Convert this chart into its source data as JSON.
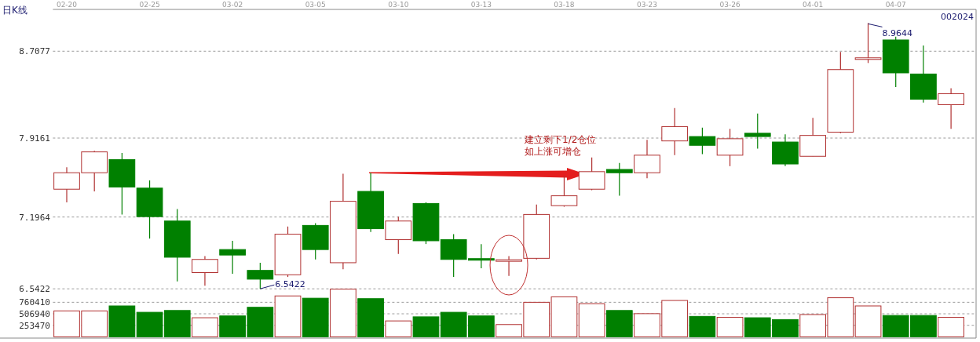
{
  "chart_data": [
    {
      "type": "candlestick",
      "title": "日K线",
      "subtitle": "002024",
      "categories": [
        "02-20",
        null,
        null,
        "02-25",
        null,
        null,
        "03-02",
        null,
        null,
        "03-05",
        null,
        null,
        "03-10",
        null,
        null,
        "03-13",
        null,
        null,
        "03-18",
        null,
        null,
        "03-23",
        null,
        null,
        "03-26",
        null,
        null,
        "04-01",
        null,
        null,
        "04-07",
        null,
        null
      ],
      "ohlc": [
        [
          7.45,
          7.65,
          7.33,
          7.6
        ],
        [
          7.6,
          7.8,
          7.43,
          7.79
        ],
        [
          7.72,
          7.78,
          7.22,
          7.47
        ],
        [
          7.46,
          7.53,
          7.0,
          7.2
        ],
        [
          7.16,
          7.27,
          6.61,
          6.83
        ],
        [
          6.69,
          6.84,
          6.57,
          6.81
        ],
        [
          6.9,
          6.98,
          6.68,
          6.85
        ],
        [
          6.71,
          6.78,
          6.5422,
          6.63
        ],
        [
          6.67,
          7.11,
          6.65,
          7.04
        ],
        [
          7.12,
          7.14,
          6.81,
          6.9
        ],
        [
          6.78,
          7.59,
          6.72,
          7.34
        ],
        [
          7.43,
          7.6,
          7.06,
          7.09
        ],
        [
          6.99,
          7.2,
          6.86,
          7.16
        ],
        [
          7.32,
          7.33,
          6.95,
          6.98
        ],
        [
          6.99,
          7.04,
          6.65,
          6.81
        ],
        [
          6.81,
          6.95,
          6.73,
          6.81
        ],
        [
          6.8,
          6.84,
          6.66,
          6.8
        ],
        [
          6.82,
          7.31,
          6.81,
          7.22
        ],
        [
          7.3,
          7.57,
          7.29,
          7.39
        ],
        [
          7.45,
          7.74,
          7.44,
          7.61
        ],
        [
          7.63,
          7.69,
          7.39,
          7.6
        ],
        [
          7.6,
          7.9,
          7.55,
          7.76
        ],
        [
          7.89,
          8.19,
          7.76,
          8.02
        ],
        [
          7.93,
          8.01,
          7.77,
          7.85
        ],
        [
          7.76,
          8.0,
          7.66,
          7.91
        ],
        [
          7.96,
          8.14,
          7.82,
          7.93
        ],
        [
          7.88,
          7.95,
          7.66,
          7.68
        ],
        [
          7.75,
          8.1,
          7.75,
          7.94
        ],
        [
          7.97,
          8.7,
          7.96,
          8.54
        ],
        [
          8.64,
          8.9644,
          8.6,
          8.64
        ],
        [
          8.81,
          8.84,
          8.38,
          8.51
        ],
        [
          8.5,
          8.76,
          8.24,
          8.27
        ],
        [
          8.22,
          8.37,
          8.0,
          8.32
        ]
      ],
      "colors": [
        "#b03030",
        "#b03030",
        "#008000",
        "#008000",
        "#008000",
        "#b03030",
        "#008000",
        "#008000",
        "#b03030",
        "#008000",
        "#b03030",
        "#008000",
        "#b03030",
        "#008000",
        "#008000",
        "#008000",
        "#b03030",
        "#b03030",
        "#b03030",
        "#b03030",
        "#008000",
        "#b03030",
        "#b03030",
        "#008000",
        "#b03030",
        "#008000",
        "#008000",
        "#b03030",
        "#b03030",
        "#b03030",
        "#008000",
        "#008000",
        "#b03030"
      ],
      "ylim": [
        6.54,
        9.09
      ],
      "yticks": [
        6.5422,
        7.1964,
        7.9161,
        8.7077
      ],
      "grid": "y",
      "annotations": [
        "8.9644",
        "6.5422",
        "建立剩下1/2仓位",
        "如上涨可增仓"
      ]
    },
    {
      "type": "bar",
      "categories": [
        null,
        null,
        null,
        null,
        null,
        null,
        null,
        null,
        null,
        null,
        null,
        null,
        null,
        null,
        null,
        null,
        null,
        null,
        null,
        null,
        null,
        null,
        null,
        null,
        null,
        null,
        null,
        null,
        null,
        null,
        null,
        null,
        null
      ],
      "values": [
        570000,
        570000,
        680000,
        540000,
        580000,
        420000,
        460000,
        650000,
        900000,
        850000,
        1050000,
        840000,
        350000,
        440000,
        540000,
        460000,
        270000,
        760000,
        880000,
        730000,
        580000,
        510000,
        800000,
        450000,
        430000,
        420000,
        380000,
        490000,
        860000,
        680000,
        470000,
        470000,
        430000
      ],
      "colors": [
        "#b03030",
        "#b03030",
        "#008000",
        "#008000",
        "#008000",
        "#b03030",
        "#008000",
        "#008000",
        "#b03030",
        "#008000",
        "#b03030",
        "#008000",
        "#b03030",
        "#008000",
        "#008000",
        "#008000",
        "#b03030",
        "#b03030",
        "#b03030",
        "#b03030",
        "#008000",
        "#b03030",
        "#b03030",
        "#008000",
        "#b03030",
        "#008000",
        "#008000",
        "#b03030",
        "#b03030",
        "#b03030",
        "#008000",
        "#008000",
        "#b03030"
      ],
      "ylim": [
        0,
        1060000
      ],
      "yticks": [
        253470,
        506940,
        760410
      ],
      "grid": "y"
    }
  ]
}
